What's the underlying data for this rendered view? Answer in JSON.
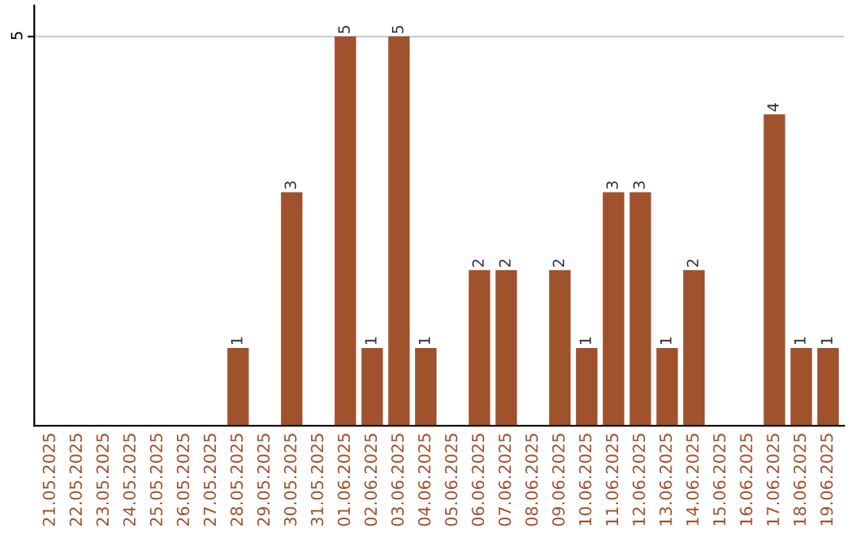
{
  "chart_data": {
    "type": "bar",
    "categories": [
      "21.05.2025",
      "22.05.2025",
      "23.05.2025",
      "24.05.2025",
      "25.05.2025",
      "26.05.2025",
      "27.05.2025",
      "28.05.2025",
      "29.05.2025",
      "30.05.2025",
      "31.05.2025",
      "01.06.2025",
      "02.06.2025",
      "03.06.2025",
      "04.06.2025",
      "05.06.2025",
      "06.06.2025",
      "07.06.2025",
      "08.06.2025",
      "09.06.2025",
      "10.06.2025",
      "11.06.2025",
      "12.06.2025",
      "13.06.2025",
      "14.06.2025",
      "15.06.2025",
      "16.06.2025",
      "17.06.2025",
      "18.06.2025",
      "19.06.2025"
    ],
    "values": [
      0,
      0,
      0,
      0,
      0,
      0,
      0,
      1,
      0,
      3,
      0,
      5,
      1,
      5,
      1,
      0,
      2,
      2,
      0,
      2,
      1,
      3,
      3,
      1,
      2,
      0,
      0,
      4,
      1,
      1
    ],
    "value_labels": [
      null,
      null,
      null,
      null,
      null,
      null,
      null,
      "1",
      null,
      "3",
      null,
      "5",
      "1",
      "5",
      "1",
      null,
      "2",
      "2",
      null,
      "2",
      "1",
      "3",
      "3",
      "1",
      "2",
      null,
      null,
      "4",
      "1",
      "1"
    ],
    "color": "#a0522d",
    "ylim": [
      0,
      5.4
    ],
    "yticks": [
      5
    ],
    "grid": "y"
  }
}
